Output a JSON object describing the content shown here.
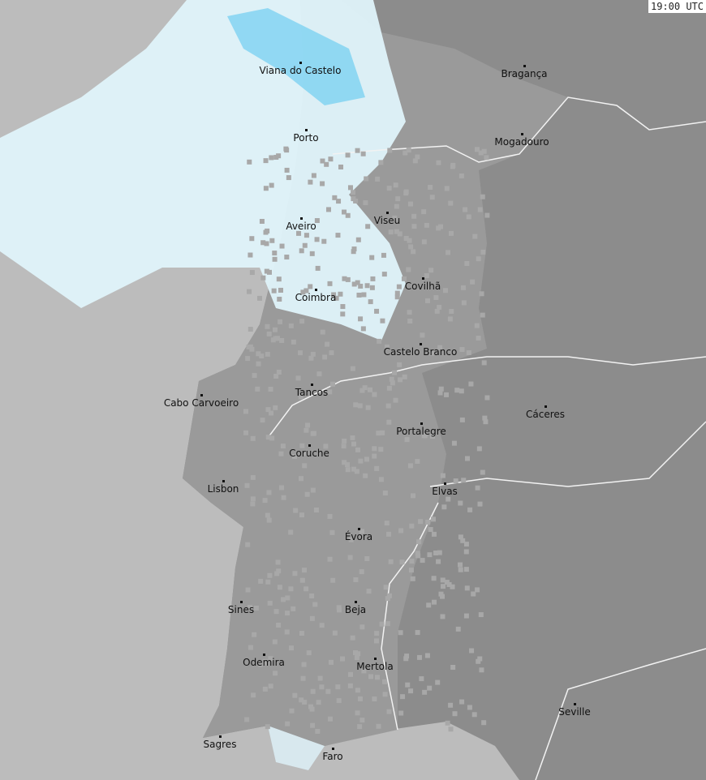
{
  "timestamp": "19:00 UTC",
  "colors": {
    "sea": "#bcbcbc",
    "land_portugal": "#9a9a9a",
    "land_spain": "#8c8c8c",
    "border": "#f2f2f2",
    "precip_light": "#dff3fa",
    "precip_medium": "#5ec8f0",
    "precip_heavy": "#1a6fe0"
  },
  "cities": [
    "Viana do Castelo",
    "Bragança",
    "Porto",
    "Mogadouro",
    "Viseu",
    "Aveiro",
    "Covilhã",
    "Coimbra",
    "Castelo Branco",
    "Tancos",
    "Cabo Carvoeiro",
    "Cáceres",
    "Portalegre",
    "Coruche",
    "Lisbon",
    "Elvas",
    "Évora",
    "Sines",
    "Beja",
    "Odemira",
    "Mertola",
    "Seville",
    "Sagres",
    "Faro"
  ]
}
